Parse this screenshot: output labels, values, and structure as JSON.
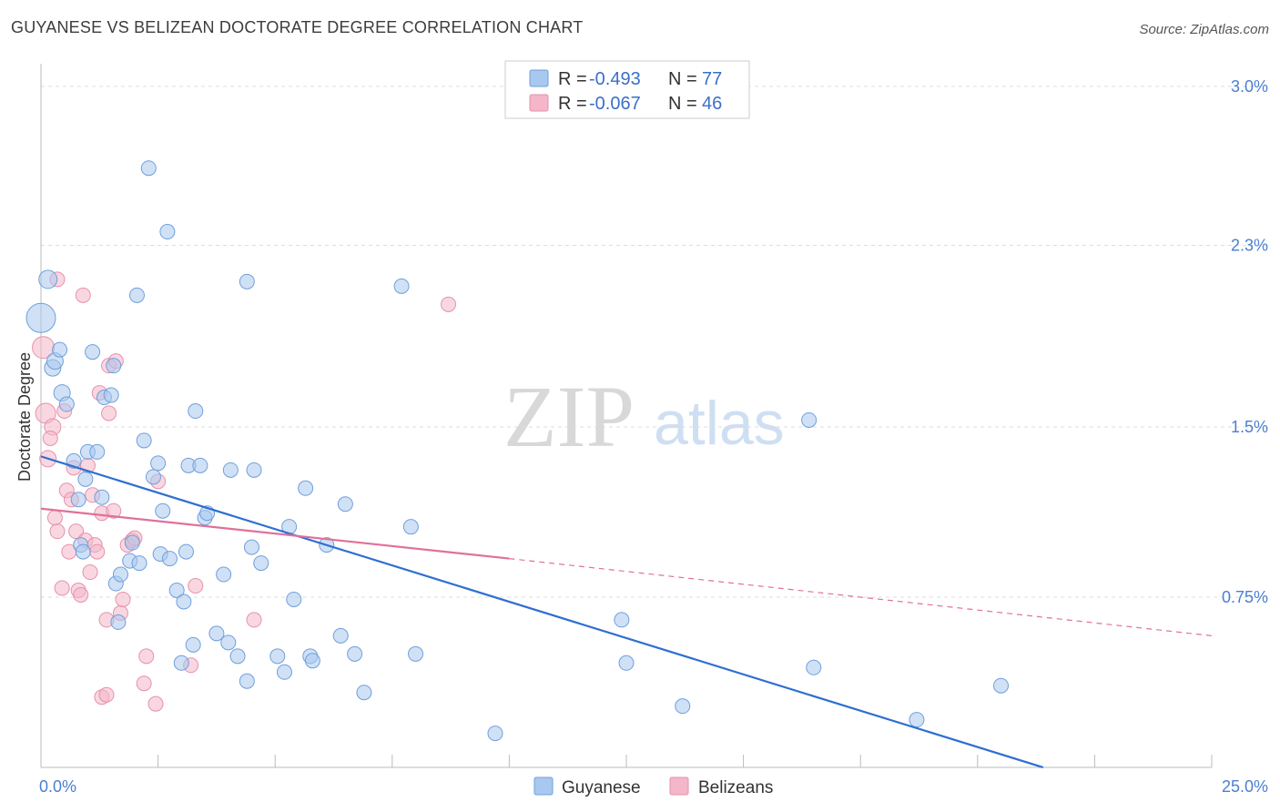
{
  "title": "GUYANESE VS BELIZEAN DOCTORATE DEGREE CORRELATION CHART",
  "source": "Source: ZipAtlas.com",
  "watermark": {
    "zip": "ZIP",
    "atlas": "atlas"
  },
  "colors": {
    "guyanese_fill": "#a9c8ef",
    "guyanese_stroke": "#6f9fdc",
    "guyanese_line": "#2f6fd0",
    "belizean_fill": "#f4b6c8",
    "belizean_stroke": "#e691ac",
    "belizean_line": "#e0709a",
    "grid": "#dddddd",
    "axis_label": "#4a7fd4"
  },
  "legend": {
    "rows": [
      {
        "r_label": "R = ",
        "r_value": "-0.493",
        "n_label": "N = ",
        "n_value": "77"
      },
      {
        "r_label": "R = ",
        "r_value": "-0.067",
        "n_label": "N = ",
        "n_value": "46"
      }
    ]
  },
  "chart_data": {
    "type": "scatter",
    "title": "GUYANESE VS BELIZEAN DOCTORATE DEGREE CORRELATION CHART",
    "xlabel": "",
    "ylabel": "Doctorate Degree",
    "xlim": [
      0,
      25
    ],
    "ylim": [
      0,
      3.1
    ],
    "x_tick_labels": [
      {
        "value": 0,
        "label": "0.0%"
      },
      {
        "value": 25,
        "label": "25.0%"
      }
    ],
    "y_tick_labels": [
      {
        "value": 0.75,
        "label": "0.75%"
      },
      {
        "value": 1.5,
        "label": "1.5%"
      },
      {
        "value": 2.3,
        "label": "2.3%"
      },
      {
        "value": 3.0,
        "label": "3.0%"
      }
    ],
    "grid": true,
    "legend_position": "top-center",
    "series": [
      {
        "name": "Guyanese",
        "R": -0.493,
        "N": 77,
        "trend": {
          "x": [
            0,
            21.4
          ],
          "y": [
            1.37,
            0.0
          ],
          "dashed_to": null
        },
        "points": [
          {
            "x": 0.0,
            "y": 1.98,
            "s": 16
          },
          {
            "x": 0.15,
            "y": 2.15,
            "s": 10
          },
          {
            "x": 0.25,
            "y": 1.76,
            "s": 9
          },
          {
            "x": 0.3,
            "y": 1.79,
            "s": 9
          },
          {
            "x": 0.4,
            "y": 1.84,
            "s": 8
          },
          {
            "x": 0.45,
            "y": 1.65,
            "s": 9
          },
          {
            "x": 0.55,
            "y": 1.6,
            "s": 8
          },
          {
            "x": 0.7,
            "y": 1.35,
            "s": 8
          },
          {
            "x": 0.95,
            "y": 1.27,
            "s": 8
          },
          {
            "x": 1.0,
            "y": 1.39,
            "s": 8
          },
          {
            "x": 1.2,
            "y": 1.39,
            "s": 8
          },
          {
            "x": 1.1,
            "y": 1.83,
            "s": 8
          },
          {
            "x": 1.35,
            "y": 1.63,
            "s": 8
          },
          {
            "x": 1.5,
            "y": 1.64,
            "s": 8
          },
          {
            "x": 1.55,
            "y": 1.77,
            "s": 8
          },
          {
            "x": 0.8,
            "y": 1.18,
            "s": 8
          },
          {
            "x": 1.3,
            "y": 1.19,
            "s": 8
          },
          {
            "x": 0.85,
            "y": 0.98,
            "s": 8
          },
          {
            "x": 0.9,
            "y": 0.95,
            "s": 8
          },
          {
            "x": 1.6,
            "y": 0.81,
            "s": 8
          },
          {
            "x": 1.7,
            "y": 0.85,
            "s": 8
          },
          {
            "x": 1.65,
            "y": 0.64,
            "s": 8
          },
          {
            "x": 1.9,
            "y": 0.91,
            "s": 8
          },
          {
            "x": 1.95,
            "y": 0.99,
            "s": 8
          },
          {
            "x": 2.1,
            "y": 0.9,
            "s": 8
          },
          {
            "x": 2.2,
            "y": 1.44,
            "s": 8
          },
          {
            "x": 2.3,
            "y": 2.64,
            "s": 8
          },
          {
            "x": 2.4,
            "y": 1.28,
            "s": 8
          },
          {
            "x": 2.5,
            "y": 1.34,
            "s": 8
          },
          {
            "x": 2.55,
            "y": 0.94,
            "s": 8
          },
          {
            "x": 2.6,
            "y": 1.13,
            "s": 8
          },
          {
            "x": 2.05,
            "y": 2.08,
            "s": 8
          },
          {
            "x": 2.7,
            "y": 2.36,
            "s": 8
          },
          {
            "x": 2.75,
            "y": 0.92,
            "s": 8
          },
          {
            "x": 2.9,
            "y": 0.78,
            "s": 8
          },
          {
            "x": 3.0,
            "y": 0.46,
            "s": 8
          },
          {
            "x": 3.05,
            "y": 0.73,
            "s": 8
          },
          {
            "x": 3.1,
            "y": 0.95,
            "s": 8
          },
          {
            "x": 3.15,
            "y": 1.33,
            "s": 8
          },
          {
            "x": 3.25,
            "y": 0.54,
            "s": 8
          },
          {
            "x": 3.3,
            "y": 1.57,
            "s": 8
          },
          {
            "x": 3.4,
            "y": 1.33,
            "s": 8
          },
          {
            "x": 3.5,
            "y": 1.1,
            "s": 8
          },
          {
            "x": 3.55,
            "y": 1.12,
            "s": 8
          },
          {
            "x": 3.75,
            "y": 0.59,
            "s": 8
          },
          {
            "x": 3.9,
            "y": 0.85,
            "s": 8
          },
          {
            "x": 4.0,
            "y": 0.55,
            "s": 8
          },
          {
            "x": 4.05,
            "y": 1.31,
            "s": 8
          },
          {
            "x": 4.2,
            "y": 0.49,
            "s": 8
          },
          {
            "x": 4.4,
            "y": 2.14,
            "s": 8
          },
          {
            "x": 4.4,
            "y": 0.38,
            "s": 8
          },
          {
            "x": 4.5,
            "y": 0.97,
            "s": 8
          },
          {
            "x": 4.55,
            "y": 1.31,
            "s": 8
          },
          {
            "x": 4.7,
            "y": 0.9,
            "s": 8
          },
          {
            "x": 5.05,
            "y": 0.49,
            "s": 8
          },
          {
            "x": 5.2,
            "y": 0.42,
            "s": 8
          },
          {
            "x": 5.3,
            "y": 1.06,
            "s": 8
          },
          {
            "x": 5.4,
            "y": 0.74,
            "s": 8
          },
          {
            "x": 5.65,
            "y": 1.23,
            "s": 8
          },
          {
            "x": 5.75,
            "y": 0.49,
            "s": 8
          },
          {
            "x": 5.8,
            "y": 0.47,
            "s": 8
          },
          {
            "x": 6.1,
            "y": 0.98,
            "s": 8
          },
          {
            "x": 6.4,
            "y": 0.58,
            "s": 8
          },
          {
            "x": 6.5,
            "y": 1.16,
            "s": 8
          },
          {
            "x": 6.7,
            "y": 0.5,
            "s": 8
          },
          {
            "x": 6.9,
            "y": 0.33,
            "s": 8
          },
          {
            "x": 7.7,
            "y": 2.12,
            "s": 8
          },
          {
            "x": 7.9,
            "y": 1.06,
            "s": 8
          },
          {
            "x": 8.0,
            "y": 0.5,
            "s": 8
          },
          {
            "x": 9.7,
            "y": 0.15,
            "s": 8
          },
          {
            "x": 12.4,
            "y": 0.65,
            "s": 8
          },
          {
            "x": 12.5,
            "y": 0.46,
            "s": 8
          },
          {
            "x": 13.7,
            "y": 0.27,
            "s": 8
          },
          {
            "x": 16.4,
            "y": 1.53,
            "s": 8
          },
          {
            "x": 16.5,
            "y": 0.44,
            "s": 8
          },
          {
            "x": 18.7,
            "y": 0.21,
            "s": 8
          },
          {
            "x": 20.5,
            "y": 0.36,
            "s": 8
          }
        ]
      },
      {
        "name": "Belizeans",
        "R": -0.067,
        "N": 46,
        "trend": {
          "x": [
            0,
            10
          ],
          "y": [
            1.14,
            0.92
          ],
          "dashed_to": {
            "x": 25,
            "y": 0.58
          }
        },
        "points": [
          {
            "x": 0.05,
            "y": 1.85,
            "s": 12
          },
          {
            "x": 0.1,
            "y": 1.56,
            "s": 11
          },
          {
            "x": 0.15,
            "y": 1.36,
            "s": 9
          },
          {
            "x": 0.25,
            "y": 1.5,
            "s": 9
          },
          {
            "x": 0.2,
            "y": 1.45,
            "s": 8
          },
          {
            "x": 0.3,
            "y": 1.1,
            "s": 8
          },
          {
            "x": 0.35,
            "y": 1.04,
            "s": 8
          },
          {
            "x": 0.45,
            "y": 0.79,
            "s": 8
          },
          {
            "x": 0.55,
            "y": 1.22,
            "s": 8
          },
          {
            "x": 0.5,
            "y": 1.57,
            "s": 8
          },
          {
            "x": 0.6,
            "y": 0.95,
            "s": 8
          },
          {
            "x": 0.65,
            "y": 1.18,
            "s": 8
          },
          {
            "x": 0.7,
            "y": 1.32,
            "s": 8
          },
          {
            "x": 0.75,
            "y": 1.04,
            "s": 8
          },
          {
            "x": 0.8,
            "y": 0.78,
            "s": 8
          },
          {
            "x": 0.85,
            "y": 0.76,
            "s": 8
          },
          {
            "x": 0.9,
            "y": 2.08,
            "s": 8
          },
          {
            "x": 0.35,
            "y": 2.15,
            "s": 8
          },
          {
            "x": 0.95,
            "y": 1.0,
            "s": 8
          },
          {
            "x": 1.0,
            "y": 1.33,
            "s": 8
          },
          {
            "x": 1.05,
            "y": 0.86,
            "s": 8
          },
          {
            "x": 1.1,
            "y": 1.2,
            "s": 8
          },
          {
            "x": 1.15,
            "y": 0.98,
            "s": 8
          },
          {
            "x": 1.2,
            "y": 0.95,
            "s": 8
          },
          {
            "x": 1.25,
            "y": 1.65,
            "s": 8
          },
          {
            "x": 1.3,
            "y": 0.31,
            "s": 8
          },
          {
            "x": 1.3,
            "y": 1.12,
            "s": 8
          },
          {
            "x": 1.4,
            "y": 0.32,
            "s": 8
          },
          {
            "x": 1.4,
            "y": 0.65,
            "s": 8
          },
          {
            "x": 1.45,
            "y": 1.77,
            "s": 8
          },
          {
            "x": 1.45,
            "y": 1.56,
            "s": 8
          },
          {
            "x": 1.55,
            "y": 1.13,
            "s": 8
          },
          {
            "x": 1.6,
            "y": 1.79,
            "s": 8
          },
          {
            "x": 1.7,
            "y": 0.68,
            "s": 8
          },
          {
            "x": 1.75,
            "y": 0.74,
            "s": 8
          },
          {
            "x": 1.85,
            "y": 0.98,
            "s": 8
          },
          {
            "x": 1.95,
            "y": 1.0,
            "s": 8
          },
          {
            "x": 2.0,
            "y": 1.01,
            "s": 8
          },
          {
            "x": 2.2,
            "y": 0.37,
            "s": 8
          },
          {
            "x": 2.25,
            "y": 0.49,
            "s": 8
          },
          {
            "x": 2.45,
            "y": 0.28,
            "s": 8
          },
          {
            "x": 2.5,
            "y": 1.26,
            "s": 8
          },
          {
            "x": 3.2,
            "y": 0.45,
            "s": 8
          },
          {
            "x": 3.3,
            "y": 0.8,
            "s": 8
          },
          {
            "x": 4.55,
            "y": 0.65,
            "s": 8
          },
          {
            "x": 8.7,
            "y": 2.04,
            "s": 8
          }
        ]
      }
    ]
  }
}
